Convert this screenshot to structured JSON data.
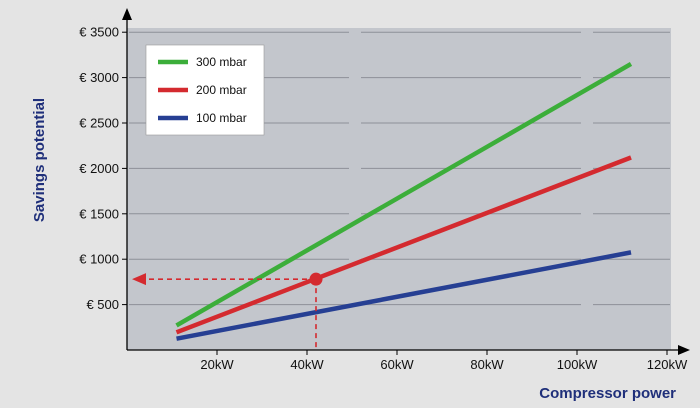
{
  "chart_data": {
    "type": "line",
    "xlabel": "Compressor power",
    "ylabel": "Savings potential",
    "xlim": [
      0,
      120
    ],
    "ylim": [
      0,
      3500
    ],
    "x_ticks": [
      20,
      40,
      60,
      80,
      100,
      120
    ],
    "x_tick_labels": [
      "20kW",
      "40kW",
      "60kW",
      "80kW",
      "100kW",
      "120kW"
    ],
    "y_ticks": [
      500,
      1000,
      1500,
      2000,
      2500,
      3000,
      3500
    ],
    "y_tick_labels": [
      "€ 500",
      "€ 1000",
      "€ 1500",
      "€ 2000",
      "€ 2500",
      "€ 3000",
      "€ 3500"
    ],
    "grid": "horizontal dashed",
    "legend_position": "top-left",
    "series": [
      {
        "name": "300 mbar",
        "color": "#3cae3a",
        "x": [
          11,
          112
        ],
        "y": [
          270,
          3150
        ]
      },
      {
        "name": "200 mbar",
        "color": "#d42a2f",
        "x": [
          11,
          112
        ],
        "y": [
          195,
          2120
        ]
      },
      {
        "name": "100 mbar",
        "color": "#263f93",
        "x": [
          11,
          112
        ],
        "y": [
          125,
          1075
        ]
      }
    ],
    "annotation": {
      "x": 42,
      "y": 780,
      "color": "#d42a2f"
    }
  }
}
